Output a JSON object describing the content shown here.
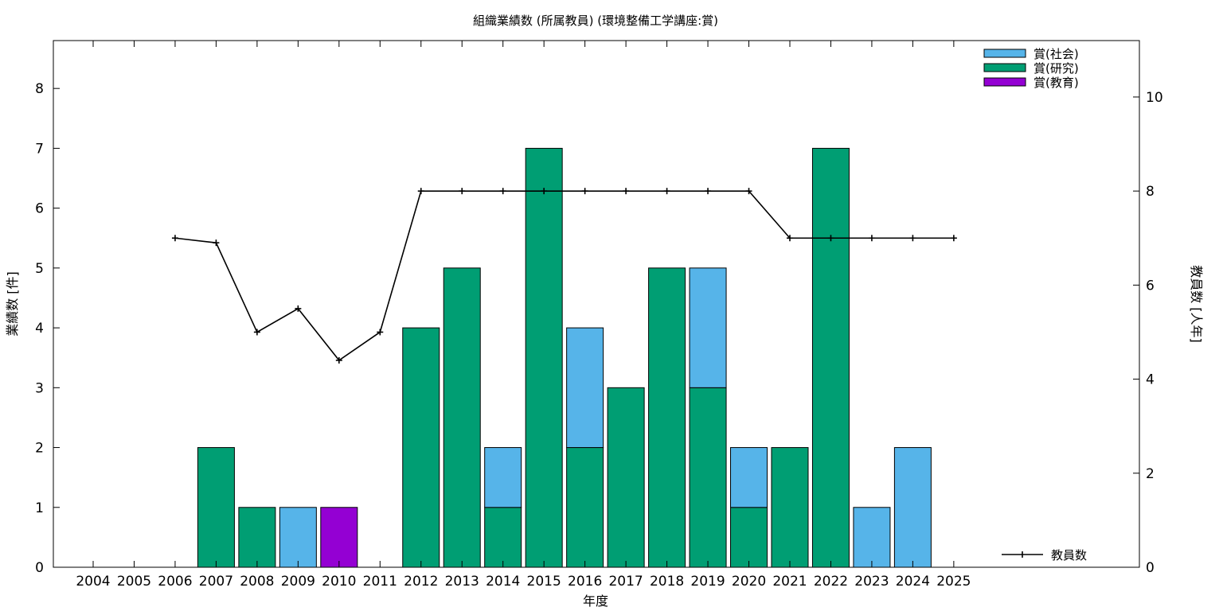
{
  "chart_data": {
    "type": "bar",
    "title": "組織業績数 (所属教員) (環境整備工学講座:賞)",
    "xlabel": "年度",
    "ylabel": "業績数 [件]",
    "y2label": "教員数 [人年]",
    "ylim": [
      0,
      8.8
    ],
    "y2lim": [
      0,
      11.2
    ],
    "yticks": [
      "0",
      "1",
      "2",
      "3",
      "4",
      "5",
      "6",
      "7",
      "8"
    ],
    "y2ticks": [
      "0",
      "2",
      "4",
      "6",
      "8",
      "10"
    ],
    "categories": [
      "2004",
      "2005",
      "2006",
      "2007",
      "2008",
      "2009",
      "2010",
      "2011",
      "2012",
      "2013",
      "2014",
      "2015",
      "2016",
      "2017",
      "2018",
      "2019",
      "2020",
      "2021",
      "2022",
      "2023",
      "2024",
      "2025"
    ],
    "stacked": true,
    "series": [
      {
        "name": "賞(研究)",
        "color": "#009e73",
        "values": [
          0,
          0,
          0,
          2,
          1,
          0,
          0,
          0,
          4,
          5,
          1,
          7,
          2,
          3,
          5,
          3,
          1,
          2,
          7,
          0,
          0,
          0
        ]
      },
      {
        "name": "賞(社会)",
        "color": "#56b4e9",
        "values": [
          0,
          0,
          0,
          0,
          0,
          1,
          0,
          0,
          0,
          0,
          1,
          0,
          2,
          0,
          0,
          2,
          1,
          0,
          0,
          1,
          2,
          0
        ]
      },
      {
        "name": "賞(教育)",
        "color": "#9400d3",
        "values": [
          0,
          0,
          0,
          0,
          0,
          0,
          1,
          0,
          0,
          0,
          0,
          0,
          0,
          0,
          0,
          0,
          0,
          0,
          0,
          0,
          0,
          0
        ]
      }
    ],
    "legend_order": [
      "賞(社会)",
      "賞(研究)",
      "賞(教育)"
    ],
    "legend_position": "top-right",
    "line_series": {
      "name": "教員数",
      "axis": "y2",
      "color": "#000000",
      "legend_position": "bottom-right",
      "values": [
        null,
        null,
        7.0,
        6.9,
        5.0,
        5.5,
        4.4,
        5.0,
        8.0,
        8.0,
        8.0,
        8.0,
        8.0,
        8.0,
        8.0,
        8.0,
        8.0,
        7.0,
        7.0,
        7.0,
        7.0,
        7.0
      ]
    },
    "grid": false
  }
}
